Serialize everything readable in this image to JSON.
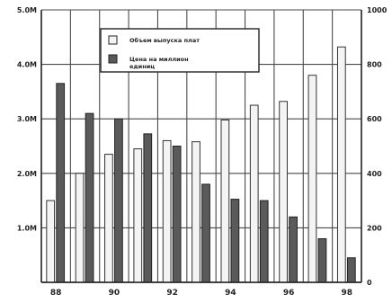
{
  "chart_data": {
    "type": "bar",
    "categories": [
      "88",
      "89",
      "90",
      "91",
      "92",
      "93",
      "94",
      "95",
      "96",
      "97",
      "98"
    ],
    "x_tick_labels": [
      "88",
      "90",
      "92",
      "94",
      "96",
      "98"
    ],
    "series": [
      {
        "name": "Объем выпуска плат",
        "axis": "left",
        "color": "#f4f4f4",
        "values": [
          1500000,
          2000000,
          2350000,
          2450000,
          2600000,
          2580000,
          2980000,
          3250000,
          3320000,
          3800000,
          4320000
        ]
      },
      {
        "name": "Цена на миллион единиц",
        "axis": "right",
        "color": "#5a5a5a",
        "values": [
          730,
          620,
          600,
          545,
          500,
          360,
          305,
          300,
          240,
          160,
          90
        ]
      }
    ],
    "y_left": {
      "range": [
        0,
        5000000
      ],
      "ticks": [
        1000000,
        2000000,
        3000000,
        4000000,
        5000000
      ],
      "tick_labels": [
        "1.0M",
        "2.0M",
        "3.0M",
        "4.0M",
        "5.0M"
      ]
    },
    "y_right": {
      "range": [
        0,
        1000
      ],
      "ticks": [
        0,
        200,
        400,
        600,
        800,
        1000
      ],
      "tick_labels": [
        "0",
        "200",
        "400",
        "600",
        "800",
        "1000"
      ]
    },
    "grid": true,
    "legend_position": "top-center",
    "legend": [
      {
        "label": "Объем выпуска плат",
        "swatch": "#f4f4f4"
      },
      {
        "label": "Цена на миллион\nединиц",
        "swatch": "#5a5a5a"
      }
    ]
  }
}
